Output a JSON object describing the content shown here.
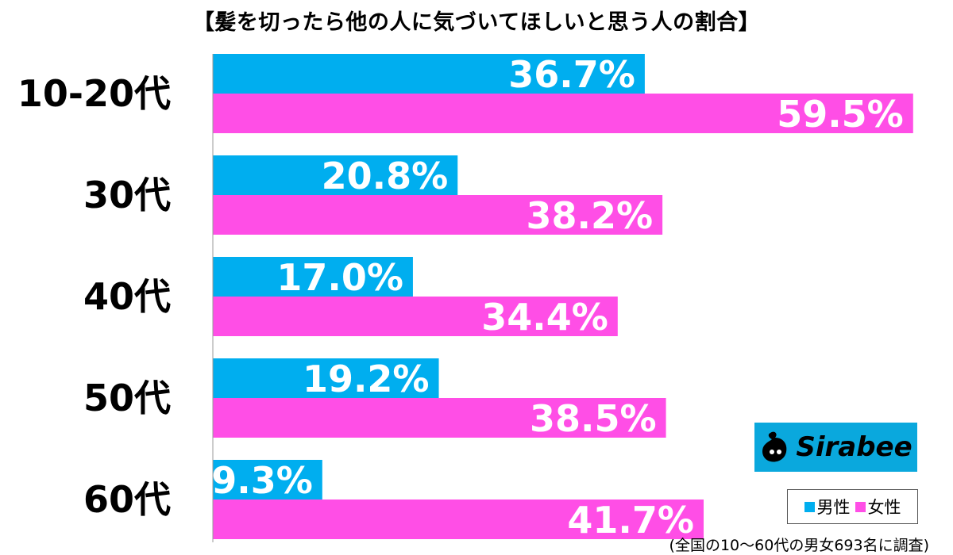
{
  "title": "【髪を切ったら他の人に気づいてほしいと思う人の割合】",
  "chart_data": {
    "type": "bar",
    "orientation": "horizontal",
    "categories": [
      "10-20代",
      "30代",
      "40代",
      "50代",
      "60代"
    ],
    "series": [
      {
        "name": "男性",
        "color": "#00aeef",
        "values": [
          36.7,
          20.8,
          17.0,
          19.2,
          9.3
        ],
        "labels": [
          "36.7%",
          "20.8%",
          "17.0%",
          "19.2%",
          "9.3%"
        ]
      },
      {
        "name": "女性",
        "color": "#ff4ee6",
        "values": [
          59.5,
          38.2,
          34.4,
          38.5,
          41.7
        ],
        "labels": [
          "59.5%",
          "38.2%",
          "34.4%",
          "38.5%",
          "41.7%"
        ]
      }
    ],
    "xlim": [
      0,
      60
    ],
    "grid": false,
    "legend_position": "bottom-right"
  },
  "legend": {
    "male": "男性",
    "female": "女性"
  },
  "logo": {
    "text": "Sirabee",
    "color": "#0aa8dd"
  },
  "footnote": "(全国の10〜60代の男女693名に調査)"
}
